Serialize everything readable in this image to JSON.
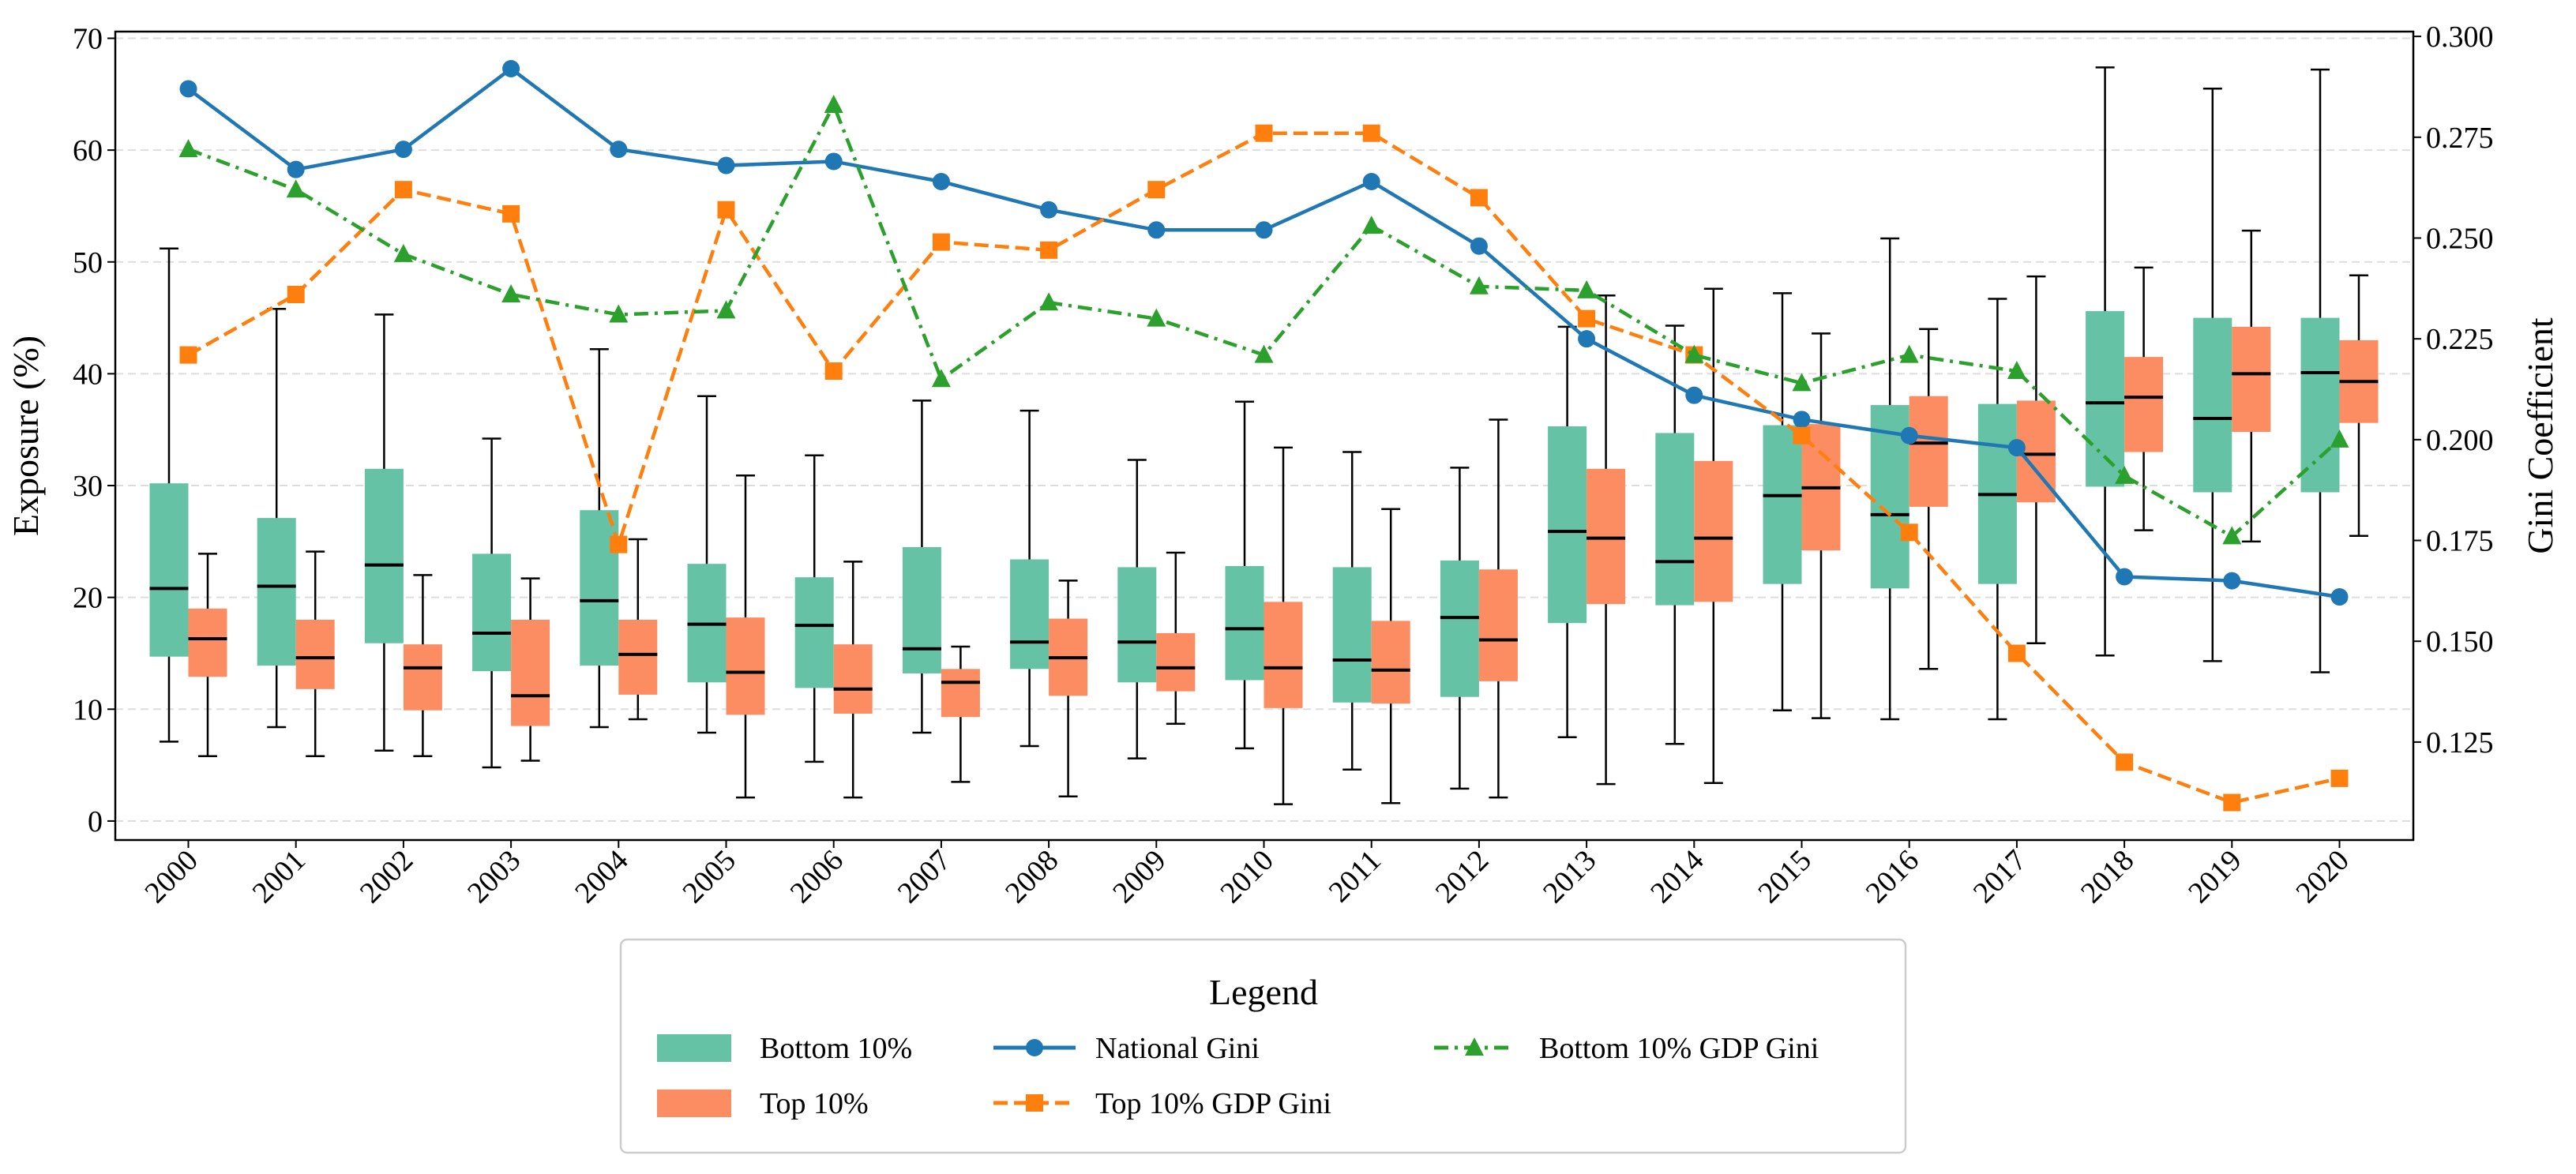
{
  "chart_data": {
    "type": "box+line",
    "xlabel": "",
    "ylabel": "Exposure (%)",
    "y2label": "Gini Coefficient",
    "ylim": [
      -1.7,
      70.6
    ],
    "y2lim": [
      0.1007,
      0.3012
    ],
    "yticks": [
      0,
      10,
      20,
      30,
      40,
      50,
      60,
      70
    ],
    "y2ticks": [
      "0.125",
      "0.150",
      "0.175",
      "0.200",
      "0.225",
      "0.250",
      "0.275",
      "0.300"
    ],
    "grid": "horizontal dashed",
    "categories": [
      "2000",
      "2001",
      "2002",
      "2003",
      "2004",
      "2005",
      "2006",
      "2007",
      "2008",
      "2009",
      "2010",
      "2011",
      "2012",
      "2013",
      "2014",
      "2015",
      "2016",
      "2017",
      "2018",
      "2019",
      "2020"
    ],
    "box_series": [
      {
        "name": "Bottom 10%",
        "color": "#66c2a5",
        "stats_order": [
          "whislo",
          "q1",
          "med",
          "q3",
          "whishi"
        ],
        "boxes": [
          [
            7.1,
            14.7,
            20.8,
            30.2,
            51.2
          ],
          [
            8.4,
            13.9,
            21,
            27.1,
            45.8
          ],
          [
            6.3,
            15.9,
            22.9,
            31.5,
            45.3
          ],
          [
            4.8,
            13.4,
            16.8,
            23.9,
            34.2
          ],
          [
            8.4,
            13.9,
            19.7,
            27.8,
            42.2
          ],
          [
            7.9,
            12.4,
            17.6,
            23,
            38
          ],
          [
            5.3,
            11.9,
            17.5,
            21.8,
            32.7
          ],
          [
            7.9,
            13.2,
            15.4,
            24.5,
            37.6
          ],
          [
            6.7,
            13.6,
            16,
            23.4,
            36.7
          ],
          [
            5.6,
            12.4,
            16,
            22.7,
            32.3
          ],
          [
            6.5,
            12.6,
            17.2,
            22.8,
            37.5
          ],
          [
            4.6,
            10.6,
            14.4,
            22.7,
            33
          ],
          [
            2.9,
            11.1,
            18.2,
            23.3,
            31.6
          ],
          [
            7.5,
            17.7,
            25.9,
            35.3,
            44.2
          ],
          [
            6.9,
            19.3,
            23.2,
            34.7,
            44.3
          ],
          [
            9.9,
            21.2,
            29.1,
            35.4,
            47.2
          ],
          [
            9.1,
            20.8,
            27.4,
            37.2,
            52.1
          ],
          [
            9.1,
            21.2,
            29.2,
            37.3,
            46.7
          ],
          [
            14.8,
            29.9,
            37.4,
            45.6,
            67.4
          ],
          [
            14.3,
            29.4,
            36,
            45,
            65.5
          ],
          [
            13.3,
            29.4,
            40.1,
            45,
            67.2
          ]
        ]
      },
      {
        "name": "Top 10%",
        "color": "#fc8d62",
        "stats_order": [
          "whislo",
          "q1",
          "med",
          "q3",
          "whishi"
        ],
        "boxes": [
          [
            5.8,
            12.9,
            16.3,
            19,
            23.9
          ],
          [
            5.8,
            11.8,
            14.6,
            18,
            24.1
          ],
          [
            5.8,
            9.9,
            13.7,
            15.8,
            22
          ],
          [
            5.4,
            8.5,
            11.2,
            18,
            21.7
          ],
          [
            9.1,
            11.3,
            14.9,
            18,
            25.2
          ],
          [
            2.1,
            9.5,
            13.3,
            18.2,
            30.9
          ],
          [
            2.1,
            9.6,
            11.8,
            15.8,
            23.2
          ],
          [
            3.5,
            9.3,
            12.4,
            13.6,
            15.6
          ],
          [
            2.2,
            11.2,
            14.6,
            18.1,
            21.5
          ],
          [
            8.7,
            11.6,
            13.7,
            16.8,
            24
          ],
          [
            1.5,
            10.1,
            13.7,
            19.6,
            33.4
          ],
          [
            1.6,
            10.5,
            13.5,
            17.9,
            27.9
          ],
          [
            2.1,
            12.5,
            16.2,
            22.5,
            35.9
          ],
          [
            3.3,
            19.4,
            25.3,
            31.5,
            47
          ],
          [
            3.4,
            19.6,
            25.3,
            32.2,
            47.6
          ],
          [
            9.2,
            24.2,
            29.8,
            35.5,
            43.6
          ],
          [
            13.6,
            28.1,
            33.8,
            38,
            44
          ],
          [
            15.9,
            28.5,
            32.8,
            37.6,
            48.7
          ],
          [
            26,
            33,
            37.9,
            41.5,
            49.5
          ],
          [
            25,
            34.8,
            40,
            44.2,
            52.8
          ],
          [
            25.5,
            35.6,
            39.3,
            43,
            48.8
          ]
        ]
      }
    ],
    "line_series": [
      {
        "name": "National Gini",
        "color": "#1f77b4",
        "marker": "circle",
        "dash": "solid",
        "values": [
          0.287,
          0.267,
          0.272,
          0.292,
          0.272,
          0.268,
          0.269,
          0.264,
          0.257,
          0.252,
          0.252,
          0.264,
          0.248,
          0.225,
          0.211,
          0.205,
          0.201,
          0.198,
          0.166,
          0.165,
          0.161
        ]
      },
      {
        "name": "Top 10% GDP Gini",
        "color": "#ff7f0e",
        "marker": "square",
        "dash": "dashed",
        "values": [
          0.221,
          0.236,
          0.262,
          0.256,
          0.174,
          0.257,
          0.217,
          0.249,
          0.247,
          0.262,
          0.276,
          0.276,
          0.26,
          0.23,
          0.221,
          0.201,
          0.177,
          0.147,
          0.12,
          0.11,
          0.116
        ]
      },
      {
        "name": "Bottom 10% GDP Gini",
        "color": "#2ca02c",
        "marker": "triangle",
        "dash": "dashdot",
        "values": [
          0.272,
          0.262,
          0.246,
          0.236,
          0.231,
          0.232,
          0.283,
          0.215,
          0.234,
          0.23,
          0.221,
          0.253,
          0.238,
          0.237,
          0.221,
          0.214,
          0.221,
          0.217,
          0.191,
          0.176,
          0.2
        ]
      }
    ],
    "legend": {
      "title": "Legend",
      "placement": "bottom-center, below plot",
      "entries": [
        "Bottom 10%",
        "Top 10%",
        "National Gini",
        "Top 10% GDP Gini",
        "Bottom 10% GDP Gini"
      ]
    }
  }
}
